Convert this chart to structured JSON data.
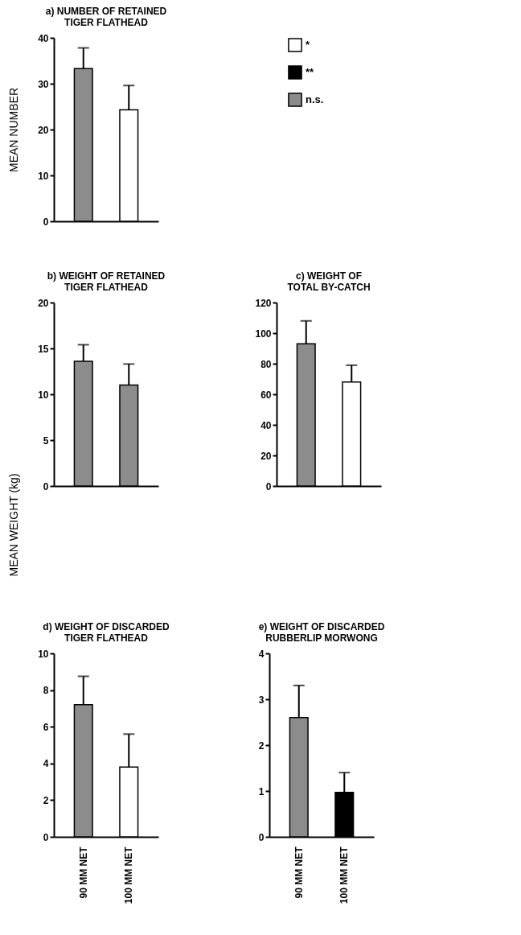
{
  "chart_data": [
    {
      "type": "bar",
      "title": "a) NUMBER OF RETAINED TIGER FLATHEAD",
      "ylabel": "MEAN NUMBER",
      "categories": [
        null,
        null
      ],
      "tick_labels": "y",
      "legend": "right",
      "ylim": [
        0,
        40
      ],
      "yticks": [
        0,
        10,
        20,
        30,
        40
      ],
      "series": [
        {
          "name": "*",
          "color": "#ffffff",
          "values": [
            null,
            24.3
          ],
          "errors": [
            null,
            [
              24.3,
              29.6
            ]
          ]
        },
        {
          "name": "**",
          "color": "#000000",
          "values": [
            null,
            null
          ],
          "errors": [
            null,
            null
          ]
        },
        {
          "name": "n.s.",
          "color": "#8c8c8c",
          "values": [
            33.3,
            null
          ],
          "errors": [
            [
              33.3,
              37.8
            ],
            null
          ]
        }
      ]
    },
    {
      "type": "bar",
      "title": "b) WEIGHT OF RETAINED TIGER FLATHEAD",
      "ylabel": "MEAN WEIGHT (kg)",
      "categories": [
        null,
        null
      ],
      "tick_labels": "y",
      "ylim": [
        0,
        20
      ],
      "yticks": [
        0,
        5,
        10,
        15,
        20
      ],
      "series": [
        {
          "color": "#8c8c8c",
          "values": [
            13.6,
            11.0
          ],
          "errors": [
            [
              13.6,
              15.4
            ],
            [
              11.0,
              13.3
            ]
          ]
        }
      ]
    },
    {
      "type": "bar",
      "title": "c) WEIGHT OF TOTAL BY-CATCH",
      "categories": [
        null,
        null
      ],
      "tick_labels": "y",
      "ylim": [
        0,
        120
      ],
      "yticks": [
        0,
        20,
        40,
        60,
        80,
        100,
        120
      ],
      "series": [
        {
          "color": "#ffffff",
          "values": [
            null,
            68
          ],
          "errors": [
            null,
            [
              68,
              79
            ]
          ]
        },
        {
          "color": "#8c8c8c",
          "values": [
            93,
            null
          ],
          "errors": [
            [
              93,
              108
            ],
            null
          ]
        }
      ]
    },
    {
      "type": "bar",
      "title": "d) WEIGHT OF DISCARDED TIGER FLATHEAD",
      "categories": [
        "90 MM NET",
        "100 MM NET"
      ],
      "ylim": [
        0,
        10
      ],
      "yticks": [
        0,
        2,
        4,
        6,
        8,
        10
      ],
      "series": [
        {
          "color": "#ffffff",
          "values": [
            null,
            3.8
          ],
          "errors": [
            null,
            [
              3.8,
              5.6
            ]
          ]
        },
        {
          "color": "#8c8c8c",
          "values": [
            7.2,
            null
          ],
          "errors": [
            [
              7.2,
              8.75
            ],
            null
          ]
        }
      ]
    },
    {
      "type": "bar",
      "title": "e) WEIGHT OF DISCARDED RUBBERLIP MORWONG",
      "categories": [
        "90 MM NET",
        "100 MM NET"
      ],
      "ylim": [
        0,
        4
      ],
      "yticks": [
        0,
        1,
        2,
        3,
        4
      ],
      "series": [
        {
          "color": "#000000",
          "values": [
            null,
            0.97
          ],
          "errors": [
            null,
            [
              0.97,
              1.4
            ]
          ]
        },
        {
          "color": "#8c8c8c",
          "values": [
            2.6,
            null
          ],
          "errors": [
            [
              2.6,
              3.3
            ],
            null
          ]
        }
      ]
    }
  ]
}
